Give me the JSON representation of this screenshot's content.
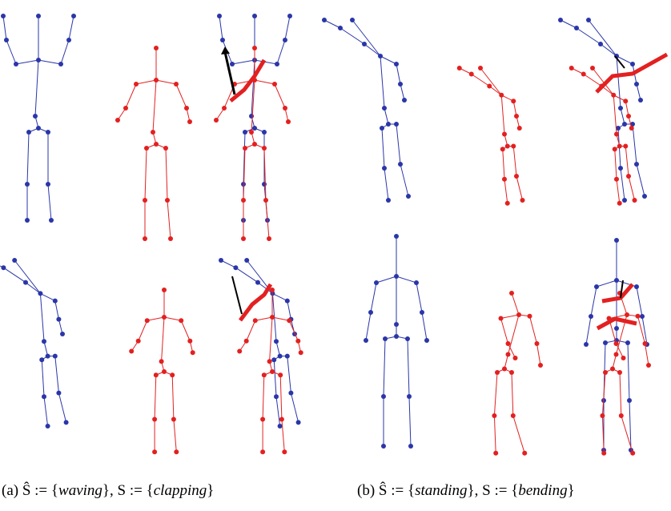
{
  "figure": {
    "captions": [
      {
        "parts": [
          "(a) Ŝ := {",
          "waving",
          "}, S := {",
          "clapping",
          "}"
        ]
      },
      {
        "parts": [
          "(b) Ŝ := {",
          "standing",
          "}, S := {",
          "bending",
          "}"
        ]
      }
    ]
  }
}
